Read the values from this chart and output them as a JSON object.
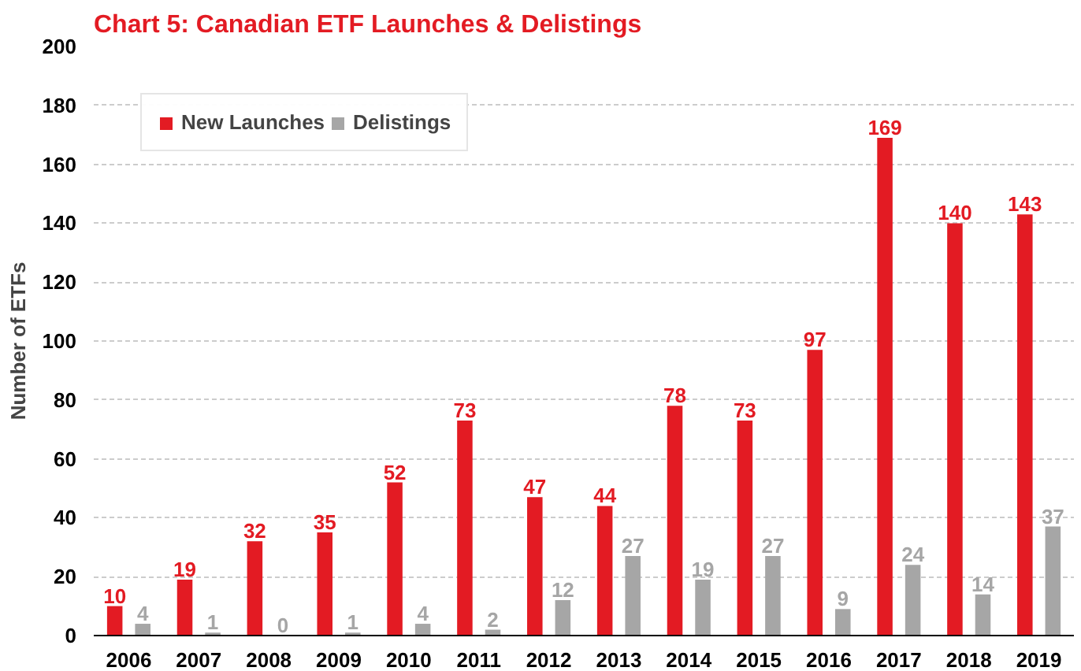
{
  "chart_data": {
    "type": "bar",
    "title": "Chart 5: Canadian ETF Launches & Delistings",
    "ylabel": "Number of ETFs",
    "categories": [
      "2006",
      "2007",
      "2008",
      "2009",
      "2010",
      "2011",
      "2012",
      "2013",
      "2014",
      "2015",
      "2016",
      "2017",
      "2018",
      "2019"
    ],
    "series": [
      {
        "name": "New Launches",
        "color": "#e31b23",
        "values": [
          10,
          19,
          32,
          35,
          52,
          73,
          47,
          44,
          78,
          73,
          97,
          169,
          140,
          143
        ]
      },
      {
        "name": "Delistings",
        "color": "#a6a6a6",
        "values": [
          4,
          1,
          0,
          1,
          4,
          2,
          12,
          27,
          19,
          27,
          9,
          24,
          14,
          37
        ]
      }
    ],
    "ylim": [
      0,
      200
    ],
    "yticks": [
      0,
      20,
      40,
      60,
      80,
      100,
      120,
      140,
      160,
      180,
      200
    ],
    "grid": "y",
    "legend": "top left",
    "data_labels": true
  }
}
